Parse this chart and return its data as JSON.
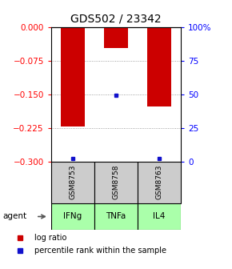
{
  "title": "GDS502 / 23342",
  "samples": [
    "GSM8753",
    "GSM8758",
    "GSM8763"
  ],
  "agents": [
    "IFNg",
    "TNFa",
    "IL4"
  ],
  "log_ratios": [
    -0.222,
    -0.048,
    -0.178
  ],
  "percentile_ranks": [
    2.0,
    49.0,
    2.0
  ],
  "ylim_left": [
    -0.3,
    0.0
  ],
  "ylim_right": [
    0.0,
    100.0
  ],
  "left_ticks": [
    0.0,
    -0.075,
    -0.15,
    -0.225,
    -0.3
  ],
  "right_ticks": [
    100,
    75,
    50,
    25,
    0
  ],
  "bar_color": "#cc0000",
  "percentile_color": "#1111cc",
  "agent_color": "#aaffaa",
  "sample_bg": "#cccccc",
  "title_fontsize": 10,
  "tick_fontsize": 7.5,
  "label_fontsize": 7.5,
  "legend_fontsize": 7,
  "bar_width": 0.55
}
